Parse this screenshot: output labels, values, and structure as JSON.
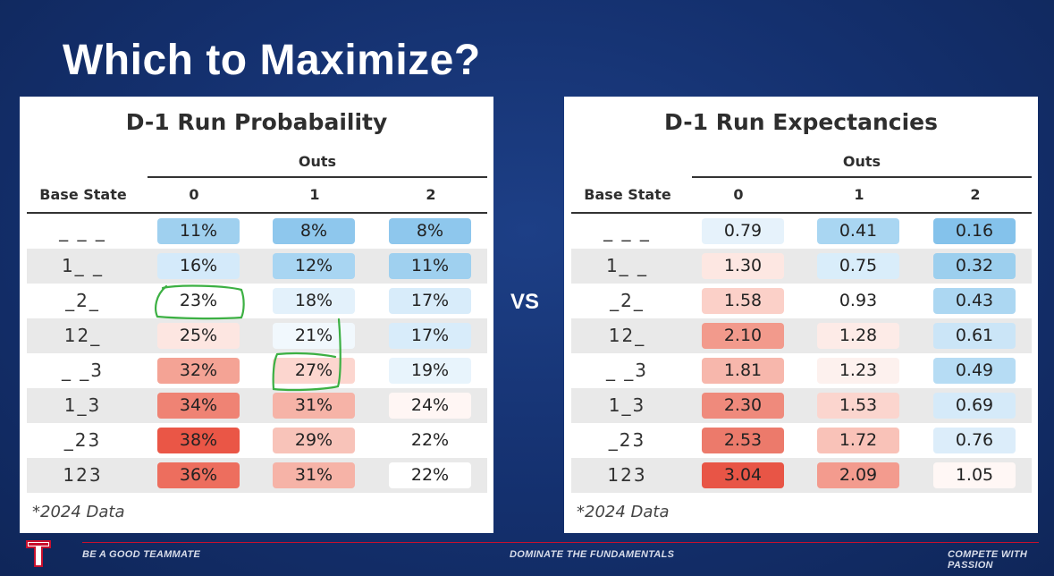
{
  "slide": {
    "title": "Which to Maximize?",
    "vs_label": "VS",
    "footer": {
      "left": "BE A GOOD TEAMMATE",
      "middle": "DOMINATE THE FUNDAMENTALS",
      "right": "COMPETE WITH PASSION"
    },
    "logo_icon": "texas-rangers-t-logo-icon"
  },
  "tables": [
    {
      "title": "D-1 Run Probabaility",
      "group_header": "Outs",
      "base_header": "Base State",
      "columns": [
        "0",
        "1",
        "2"
      ],
      "footnote": "*2024 Data",
      "rows": [
        {
          "base": "_ _ _",
          "values": [
            "11%",
            "8%",
            "8%"
          ],
          "colors": [
            "#9fd0ef",
            "#8ec7ed",
            "#8ec7ed"
          ]
        },
        {
          "base": "1_ _",
          "values": [
            "16%",
            "12%",
            "11%"
          ],
          "colors": [
            "#d4eafa",
            "#a8d5f2",
            "#9fd0ef"
          ]
        },
        {
          "base": "_2_",
          "values": [
            "23%",
            "18%",
            "17%"
          ],
          "colors": [
            "#ffffff",
            "#e3f1fb",
            "#d8ecfa"
          ]
        },
        {
          "base": "12_",
          "values": [
            "25%",
            "21%",
            "17%"
          ],
          "colors": [
            "#fde6e1",
            "#f1f8fd",
            "#d8ecfa"
          ]
        },
        {
          "base": "_ _3",
          "values": [
            "32%",
            "27%",
            "19%"
          ],
          "colors": [
            "#f4a395",
            "#fcd6cf",
            "#e8f4fc"
          ]
        },
        {
          "base": "1_3",
          "values": [
            "34%",
            "31%",
            "24%"
          ],
          "colors": [
            "#ef8374",
            "#f6b3a7",
            "#fff6f4"
          ]
        },
        {
          "base": "_23",
          "values": [
            "38%",
            "29%",
            "22%"
          ],
          "colors": [
            "#ea5646",
            "#f8c3b9",
            "#ffffff"
          ]
        },
        {
          "base": "123",
          "values": [
            "36%",
            "31%",
            "22%"
          ],
          "colors": [
            "#ed6e5e",
            "#f6b3a7",
            "#ffffff"
          ]
        }
      ]
    },
    {
      "title": "D-1 Run Expectancies",
      "group_header": "Outs",
      "base_header": "Base State",
      "columns": [
        "0",
        "1",
        "2"
      ],
      "footnote": "*2024 Data",
      "rows": [
        {
          "base": "_ _ _",
          "values": [
            "0.79",
            "0.41",
            "0.16"
          ],
          "colors": [
            "#e6f2fb",
            "#a9d6f2",
            "#84c2eb"
          ]
        },
        {
          "base": "1_ _",
          "values": [
            "1.30",
            "0.75",
            "0.32"
          ],
          "colors": [
            "#fde7e2",
            "#d9edfa",
            "#9ccfee"
          ]
        },
        {
          "base": "_2_",
          "values": [
            "1.58",
            "0.93",
            "0.43"
          ],
          "colors": [
            "#fbd0c8",
            "#ffffff",
            "#acd7f2"
          ]
        },
        {
          "base": "12_",
          "values": [
            "2.10",
            "1.28",
            "0.61"
          ],
          "colors": [
            "#f29a8c",
            "#fdebe7",
            "#cbe5f7"
          ]
        },
        {
          "base": "_ _3",
          "values": [
            "1.81",
            "1.23",
            "0.49"
          ],
          "colors": [
            "#f7b7ac",
            "#fdf1ee",
            "#b6dcf4"
          ]
        },
        {
          "base": "1_3",
          "values": [
            "2.30",
            "1.53",
            "0.69"
          ],
          "colors": [
            "#ef8a7c",
            "#fbd5ce",
            "#d5eaf9"
          ]
        },
        {
          "base": "_23",
          "values": [
            "2.53",
            "1.72",
            "0.76"
          ],
          "colors": [
            "#ec7a6b",
            "#f9c2b8",
            "#dcedfa"
          ]
        },
        {
          "base": "123",
          "values": [
            "3.04",
            "2.09",
            "1.05"
          ],
          "colors": [
            "#e85546",
            "#f39b8e",
            "#fff7f5"
          ]
        }
      ]
    }
  ]
}
